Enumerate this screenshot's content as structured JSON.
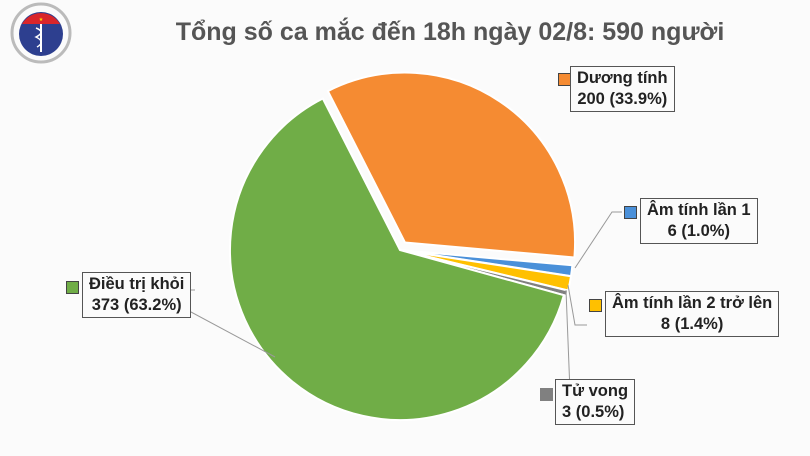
{
  "logo": {
    "text_top": "BỘ Y TẾ",
    "text_bottom": "MINISTRY OF HEALTH"
  },
  "chart_data": {
    "type": "pie",
    "title": "Tổng số ca mắc đến 18h ngày 02/8: 590 người",
    "slices": [
      {
        "name": "Dương tính",
        "value": 200,
        "percent": "33.9%",
        "color": "#f58b32",
        "exploded": true
      },
      {
        "name": "Âm tính lần 1",
        "value": 6,
        "percent": "1.0%",
        "color": "#4a90d9"
      },
      {
        "name": "Âm tính lần 2 trở lên",
        "value": 8,
        "percent": "1.4%",
        "color": "#ffc000"
      },
      {
        "name": "Tử vong",
        "value": 3,
        "percent": "0.5%",
        "color": "#808080"
      },
      {
        "name": "Điều trị khỏi",
        "value": 373,
        "percent": "63.2%",
        "color": "#70ad47"
      }
    ]
  }
}
